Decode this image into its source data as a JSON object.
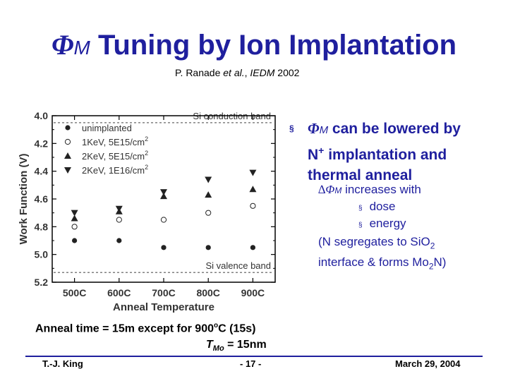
{
  "slide": {
    "title_symbol": "Φ",
    "title_subscript": "M",
    "title_text": " Tuning by Ion Implantation",
    "citation_prefix": "P. Ranade ",
    "citation_etal": "et al.",
    "citation_sep": ", ",
    "citation_venue": "IEDM",
    "citation_year": " 2002",
    "bullet_symbol": "Φ",
    "bullet_subscript": "M",
    "bullet_text_1": " can be lowered by",
    "bullet_text_2": "N",
    "bullet_superscript": "+",
    "bullet_text_3": " implantation and",
    "bullet_text_4": "thermal anneal",
    "delta_prefix": "∆Φ",
    "delta_sub": "M",
    "delta_text": " increases with",
    "sub_items": [
      "dose",
      "energy"
    ],
    "note_line1_a": "(N segregates to SiO",
    "note_line1_sub": "2",
    "note_line2_a": "interface & forms Mo",
    "note_line2_sub": "2",
    "note_line2_b": "N)",
    "anneal_note_a": "Anneal time = 15m except for 900",
    "anneal_note_sup": "o",
    "anneal_note_b": "C (15s)",
    "tmo_T": "T",
    "tmo_sub": "Mo",
    "tmo_rest": " = 15nm",
    "footer_left": "T.-J. King",
    "footer_center": "- 17 -",
    "footer_right": "March 29, 2004",
    "bullet_marker": "§"
  },
  "chart_data": {
    "type": "scatter",
    "categories": [
      "500C",
      "600C",
      "700C",
      "800C",
      "900C"
    ],
    "xlabel": "Anneal Temperature",
    "ylabel": "Work Function (V)",
    "ylim": [
      4.0,
      5.2
    ],
    "y_inverted": true,
    "yticks": [
      "4.0",
      "4.2",
      "4.4",
      "4.6",
      "4.8",
      "5.0",
      "5.2"
    ],
    "annotations": [
      {
        "text": "Si conduction band",
        "y": 4.05
      },
      {
        "text": "Si valence band",
        "y": 5.13
      }
    ],
    "series": [
      {
        "name": "unimplanted",
        "marker": "filled-circle",
        "values": [
          4.9,
          4.9,
          4.95,
          4.95,
          4.95
        ]
      },
      {
        "name": "1KeV, 5E15/cm",
        "sup": "2",
        "marker": "open-circle",
        "values": [
          4.8,
          4.75,
          4.75,
          4.7,
          4.65
        ]
      },
      {
        "name": "2KeV, 5E15/cm",
        "sup": "2",
        "marker": "filled-triangle-up",
        "values": [
          4.74,
          4.69,
          4.58,
          4.57,
          4.53
        ]
      },
      {
        "name": "2KeV, 1E16/cm",
        "sup": "2",
        "marker": "filled-triangle-down",
        "values": [
          4.7,
          4.67,
          4.55,
          4.46,
          4.41
        ]
      }
    ],
    "colors": {
      "axis": "#000000",
      "grid": "#808080",
      "text": "#333333",
      "marker": "#222222",
      "title": "#1f1f9e"
    }
  }
}
